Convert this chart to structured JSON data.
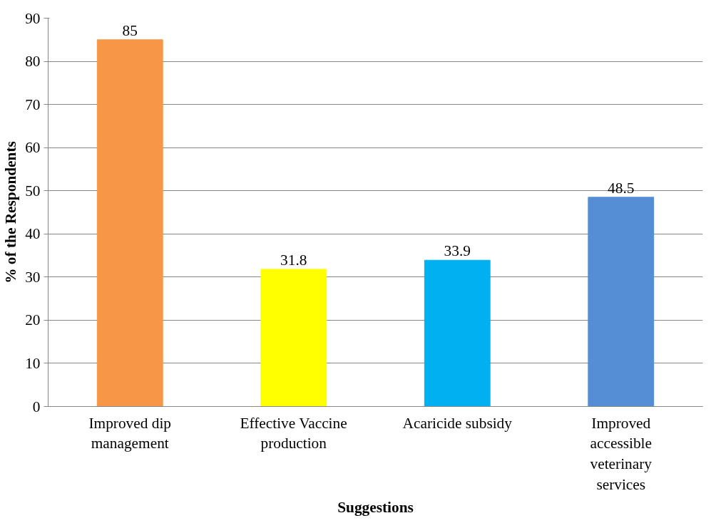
{
  "chart_data": {
    "type": "bar",
    "xlabel": "Suggestions",
    "ylabel": "% of the Respondents",
    "categories": [
      "Improved dip management",
      "Effective Vaccine production",
      "Acaricide subsidy",
      "Improved accessible veterinary services"
    ],
    "values": [
      85,
      31.8,
      33.9,
      48.5
    ],
    "colors": [
      "#f79646",
      "#ffff00",
      "#00b0f0",
      "#558ed5"
    ],
    "ylim": [
      0,
      90
    ],
    "yticks": [
      0,
      10,
      20,
      30,
      40,
      50,
      60,
      70,
      80,
      90
    ],
    "grid": "y",
    "data_labels": true
  }
}
